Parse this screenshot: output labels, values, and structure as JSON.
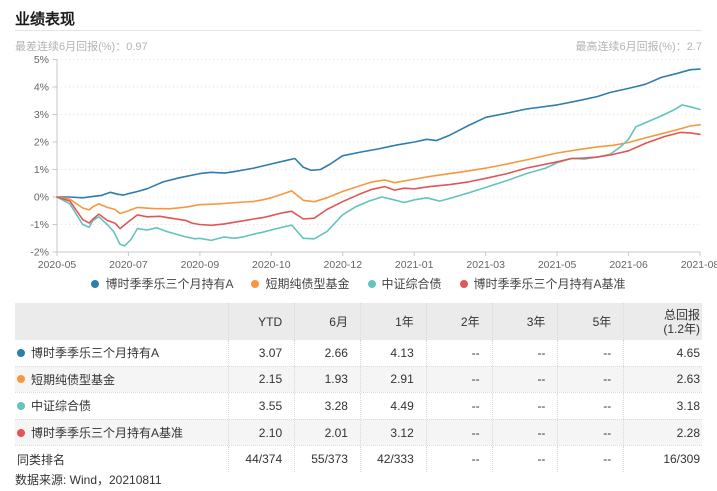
{
  "page": {
    "title": "业绩表现",
    "subtitle_left": "最差连续6月回报(%)：0.97",
    "subtitle_right": "最高连续6月回报(%)：2.7",
    "footer": "数据来源: Wind，20210811"
  },
  "colors": {
    "blue": "#2e7dad",
    "orange": "#f7983f",
    "teal": "#63c4bd",
    "red": "#e05656",
    "grid": "#e0e0e0",
    "axis": "#c9c9c9",
    "tick_text": "#666666"
  },
  "chart_data": {
    "type": "line",
    "title": "业绩表现",
    "unit": "%",
    "grid": "dotted-horizontal",
    "legend_position": "bottom",
    "x_axis": {
      "kind": "time-index",
      "range": [
        "2020-05",
        "2021-08"
      ],
      "tick_labels": [
        "2020-05",
        "2020-07",
        "2020-09",
        "2020-10",
        "2020-12",
        "2021-01",
        "2021-03",
        "2021-05",
        "2021-06",
        "2021-08"
      ]
    },
    "y_axis": {
      "min": -2,
      "max": 5,
      "tick_labels": [
        "5%",
        "4%",
        "3%",
        "2%",
        "1%",
        "0%",
        "-1%",
        "-2%"
      ]
    },
    "series": [
      {
        "name": "博时季季乐三个月持有A",
        "color": "#2e7dad",
        "points": [
          [
            0,
            0
          ],
          [
            0.02,
            0
          ],
          [
            0.04,
            -0.03
          ],
          [
            0.056,
            0.02
          ],
          [
            0.07,
            0.06
          ],
          [
            0.083,
            0.17
          ],
          [
            0.095,
            0.1
          ],
          [
            0.103,
            0.07
          ],
          [
            0.111,
            0.12
          ],
          [
            0.125,
            0.2
          ],
          [
            0.14,
            0.3
          ],
          [
            0.165,
            0.55
          ],
          [
            0.19,
            0.7
          ],
          [
            0.222,
            0.85
          ],
          [
            0.24,
            0.9
          ],
          [
            0.26,
            0.87
          ],
          [
            0.275,
            0.92
          ],
          [
            0.306,
            1.05
          ],
          [
            0.333,
            1.2
          ],
          [
            0.355,
            1.32
          ],
          [
            0.37,
            1.4
          ],
          [
            0.383,
            1.08
          ],
          [
            0.395,
            0.97
          ],
          [
            0.41,
            1.0
          ],
          [
            0.425,
            1.2
          ],
          [
            0.444,
            1.5
          ],
          [
            0.47,
            1.62
          ],
          [
            0.5,
            1.75
          ],
          [
            0.53,
            1.9
          ],
          [
            0.556,
            2.0
          ],
          [
            0.575,
            2.1
          ],
          [
            0.59,
            2.05
          ],
          [
            0.611,
            2.25
          ],
          [
            0.64,
            2.6
          ],
          [
            0.667,
            2.9
          ],
          [
            0.7,
            3.05
          ],
          [
            0.73,
            3.2
          ],
          [
            0.778,
            3.35
          ],
          [
            0.81,
            3.5
          ],
          [
            0.84,
            3.65
          ],
          [
            0.86,
            3.8
          ],
          [
            0.889,
            3.95
          ],
          [
            0.915,
            4.1
          ],
          [
            0.94,
            4.35
          ],
          [
            0.965,
            4.5
          ],
          [
            0.985,
            4.63
          ],
          [
            1,
            4.65
          ]
        ]
      },
      {
        "name": "短期纯债型基金",
        "color": "#f7983f",
        "points": [
          [
            0,
            0
          ],
          [
            0.02,
            -0.08
          ],
          [
            0.04,
            -0.4
          ],
          [
            0.05,
            -0.47
          ],
          [
            0.056,
            -0.35
          ],
          [
            0.065,
            -0.25
          ],
          [
            0.078,
            -0.38
          ],
          [
            0.09,
            -0.45
          ],
          [
            0.098,
            -0.6
          ],
          [
            0.111,
            -0.5
          ],
          [
            0.125,
            -0.38
          ],
          [
            0.15,
            -0.42
          ],
          [
            0.175,
            -0.43
          ],
          [
            0.2,
            -0.37
          ],
          [
            0.222,
            -0.28
          ],
          [
            0.25,
            -0.25
          ],
          [
            0.28,
            -0.2
          ],
          [
            0.306,
            -0.16
          ],
          [
            0.32,
            -0.1
          ],
          [
            0.333,
            -0.03
          ],
          [
            0.35,
            0.1
          ],
          [
            0.365,
            0.22
          ],
          [
            0.383,
            -0.12
          ],
          [
            0.4,
            -0.17
          ],
          [
            0.42,
            -0.03
          ],
          [
            0.444,
            0.2
          ],
          [
            0.47,
            0.4
          ],
          [
            0.49,
            0.55
          ],
          [
            0.51,
            0.62
          ],
          [
            0.525,
            0.52
          ],
          [
            0.556,
            0.65
          ],
          [
            0.58,
            0.75
          ],
          [
            0.611,
            0.85
          ],
          [
            0.64,
            0.95
          ],
          [
            0.667,
            1.05
          ],
          [
            0.7,
            1.2
          ],
          [
            0.73,
            1.35
          ],
          [
            0.778,
            1.6
          ],
          [
            0.81,
            1.72
          ],
          [
            0.84,
            1.82
          ],
          [
            0.865,
            1.88
          ],
          [
            0.889,
            1.98
          ],
          [
            0.915,
            2.15
          ],
          [
            0.94,
            2.3
          ],
          [
            0.965,
            2.45
          ],
          [
            0.985,
            2.58
          ],
          [
            1,
            2.63
          ]
        ]
      },
      {
        "name": "中证综合债",
        "color": "#63c4bd",
        "points": [
          [
            0,
            0
          ],
          [
            0.02,
            -0.25
          ],
          [
            0.04,
            -1.0
          ],
          [
            0.05,
            -1.1
          ],
          [
            0.056,
            -0.85
          ],
          [
            0.065,
            -0.72
          ],
          [
            0.078,
            -1.0
          ],
          [
            0.088,
            -1.25
          ],
          [
            0.098,
            -1.72
          ],
          [
            0.105,
            -1.78
          ],
          [
            0.115,
            -1.55
          ],
          [
            0.125,
            -1.15
          ],
          [
            0.14,
            -1.2
          ],
          [
            0.155,
            -1.12
          ],
          [
            0.17,
            -1.25
          ],
          [
            0.185,
            -1.35
          ],
          [
            0.2,
            -1.45
          ],
          [
            0.215,
            -1.52
          ],
          [
            0.222,
            -1.5
          ],
          [
            0.24,
            -1.58
          ],
          [
            0.26,
            -1.45
          ],
          [
            0.275,
            -1.5
          ],
          [
            0.29,
            -1.45
          ],
          [
            0.306,
            -1.35
          ],
          [
            0.32,
            -1.28
          ],
          [
            0.333,
            -1.2
          ],
          [
            0.35,
            -1.1
          ],
          [
            0.365,
            -1.02
          ],
          [
            0.383,
            -1.5
          ],
          [
            0.4,
            -1.52
          ],
          [
            0.42,
            -1.25
          ],
          [
            0.444,
            -0.65
          ],
          [
            0.465,
            -0.35
          ],
          [
            0.485,
            -0.15
          ],
          [
            0.505,
            0.0
          ],
          [
            0.52,
            -0.08
          ],
          [
            0.54,
            -0.2
          ],
          [
            0.556,
            -0.1
          ],
          [
            0.575,
            -0.03
          ],
          [
            0.595,
            -0.15
          ],
          [
            0.611,
            -0.05
          ],
          [
            0.64,
            0.15
          ],
          [
            0.667,
            0.35
          ],
          [
            0.7,
            0.6
          ],
          [
            0.73,
            0.85
          ],
          [
            0.76,
            1.05
          ],
          [
            0.778,
            1.25
          ],
          [
            0.8,
            1.4
          ],
          [
            0.82,
            1.38
          ],
          [
            0.84,
            1.45
          ],
          [
            0.86,
            1.55
          ],
          [
            0.875,
            1.8
          ],
          [
            0.889,
            2.1
          ],
          [
            0.9,
            2.55
          ],
          [
            0.92,
            2.75
          ],
          [
            0.94,
            2.95
          ],
          [
            0.958,
            3.15
          ],
          [
            0.972,
            3.35
          ],
          [
            0.985,
            3.28
          ],
          [
            1,
            3.18
          ]
        ]
      },
      {
        "name": "博时季季乐三个月持有A基准",
        "color": "#e05656",
        "points": [
          [
            0,
            0
          ],
          [
            0.02,
            -0.15
          ],
          [
            0.04,
            -0.82
          ],
          [
            0.05,
            -0.95
          ],
          [
            0.056,
            -0.8
          ],
          [
            0.065,
            -0.62
          ],
          [
            0.078,
            -0.85
          ],
          [
            0.09,
            -0.95
          ],
          [
            0.098,
            -1.15
          ],
          [
            0.111,
            -0.9
          ],
          [
            0.125,
            -0.65
          ],
          [
            0.14,
            -0.72
          ],
          [
            0.16,
            -0.7
          ],
          [
            0.175,
            -0.76
          ],
          [
            0.2,
            -0.85
          ],
          [
            0.21,
            -0.95
          ],
          [
            0.222,
            -1.0
          ],
          [
            0.24,
            -1.03
          ],
          [
            0.26,
            -0.98
          ],
          [
            0.28,
            -0.9
          ],
          [
            0.306,
            -0.8
          ],
          [
            0.32,
            -0.75
          ],
          [
            0.333,
            -0.68
          ],
          [
            0.35,
            -0.58
          ],
          [
            0.365,
            -0.52
          ],
          [
            0.383,
            -0.8
          ],
          [
            0.4,
            -0.77
          ],
          [
            0.42,
            -0.45
          ],
          [
            0.444,
            -0.17
          ],
          [
            0.47,
            0.1
          ],
          [
            0.49,
            0.28
          ],
          [
            0.51,
            0.38
          ],
          [
            0.525,
            0.25
          ],
          [
            0.54,
            0.32
          ],
          [
            0.556,
            0.3
          ],
          [
            0.58,
            0.38
          ],
          [
            0.611,
            0.45
          ],
          [
            0.64,
            0.55
          ],
          [
            0.667,
            0.68
          ],
          [
            0.7,
            0.85
          ],
          [
            0.73,
            1.05
          ],
          [
            0.778,
            1.28
          ],
          [
            0.8,
            1.4
          ],
          [
            0.82,
            1.42
          ],
          [
            0.84,
            1.45
          ],
          [
            0.865,
            1.55
          ],
          [
            0.889,
            1.68
          ],
          [
            0.915,
            1.95
          ],
          [
            0.945,
            2.2
          ],
          [
            0.97,
            2.35
          ],
          [
            0.985,
            2.33
          ],
          [
            1,
            2.28
          ]
        ]
      }
    ]
  },
  "table": {
    "headers": [
      {
        "label": ""
      },
      {
        "label": "YTD"
      },
      {
        "label": "6月"
      },
      {
        "label": "1年"
      },
      {
        "label": "2年"
      },
      {
        "label": "3年"
      },
      {
        "label": "5年"
      },
      {
        "label": "总回报",
        "sub": "(1.2年)"
      }
    ],
    "rows": [
      {
        "name": "博时季季乐三个月持有A",
        "color": "#2e7dad",
        "values": [
          "3.07",
          "2.66",
          "4.13",
          "--",
          "--",
          "--",
          "4.65"
        ]
      },
      {
        "name": "短期纯债型基金",
        "color": "#f7983f",
        "values": [
          "2.15",
          "1.93",
          "2.91",
          "--",
          "--",
          "--",
          "2.63"
        ]
      },
      {
        "name": "中证综合债",
        "color": "#63c4bd",
        "values": [
          "3.55",
          "3.28",
          "4.49",
          "--",
          "--",
          "--",
          "3.18"
        ]
      },
      {
        "name": "博时季季乐三个月持有A基准",
        "color": "#e05656",
        "values": [
          "2.10",
          "2.01",
          "3.12",
          "--",
          "--",
          "--",
          "2.28"
        ]
      },
      {
        "name": "同类排名",
        "color": null,
        "values": [
          "44/374",
          "55/373",
          "42/333",
          "--",
          "--",
          "--",
          "16/309"
        ]
      }
    ]
  }
}
